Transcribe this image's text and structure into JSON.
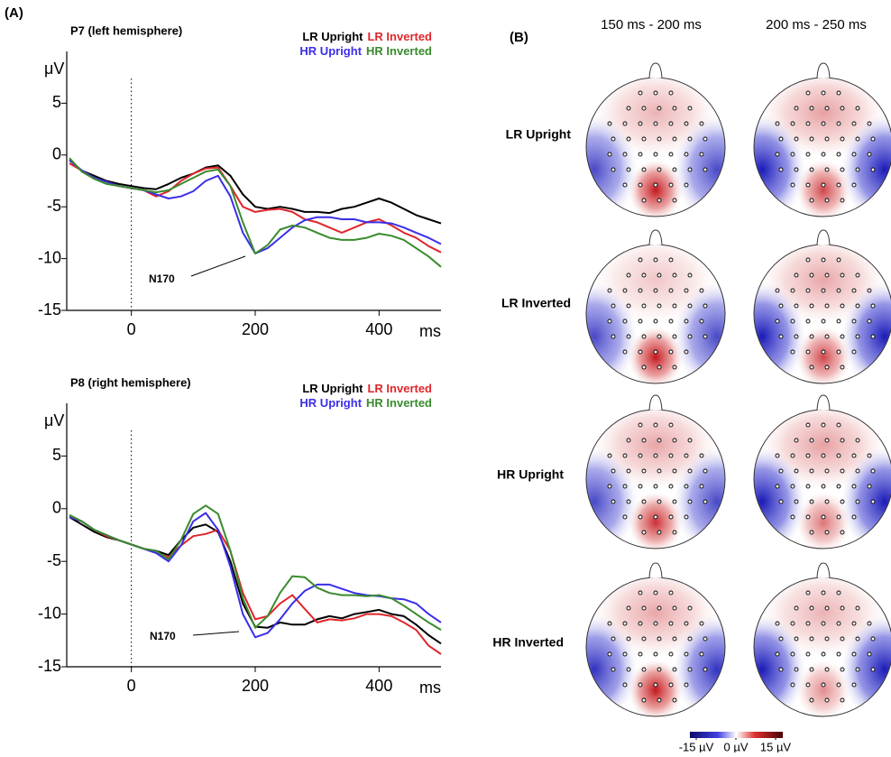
{
  "panel_a_label": "(A)",
  "chart_data": [
    {
      "type": "line",
      "title": "P7 (left hemisphere)",
      "xlabel": "ms",
      "ylabel": "μV",
      "x": [
        -100,
        -80,
        -60,
        -40,
        -20,
        0,
        20,
        40,
        60,
        80,
        100,
        120,
        140,
        160,
        180,
        200,
        220,
        240,
        260,
        280,
        300,
        320,
        340,
        360,
        380,
        400,
        420,
        440,
        460,
        480,
        500
      ],
      "xlim": [
        -100,
        500
      ],
      "xticks": [
        0,
        200,
        400
      ],
      "ylim": [
        -15,
        10
      ],
      "yticks": [
        -15,
        -10,
        -5,
        0,
        5
      ],
      "reference_line_x": 0,
      "legend": "top-right",
      "annotation": "N170",
      "series": [
        {
          "name": "LR Upright",
          "color": "#000000",
          "values": [
            -0.5,
            -1.5,
            -2,
            -2.5,
            -2.8,
            -3,
            -3.2,
            -3.3,
            -2.8,
            -2.2,
            -1.8,
            -1.2,
            -1,
            -2,
            -3.8,
            -5,
            -5.2,
            -5,
            -5.2,
            -5.5,
            -5.5,
            -5.6,
            -5.2,
            -5,
            -4.6,
            -4.2,
            -4.6,
            -5.2,
            -5.8,
            -6.2,
            -6.6
          ]
        },
        {
          "name": "LR Inverted",
          "color": "#e0262b",
          "values": [
            -0.8,
            -1.5,
            -2.2,
            -2.6,
            -3,
            -3.2,
            -3.4,
            -4,
            -3.5,
            -2.5,
            -1.8,
            -1.3,
            -1.2,
            -3,
            -5,
            -5.5,
            -5.3,
            -5.2,
            -5.5,
            -6.2,
            -6.5,
            -7,
            -7.5,
            -7,
            -6.5,
            -6.2,
            -6.8,
            -7.5,
            -8,
            -8.8,
            -9.4
          ]
        },
        {
          "name": "HR Upright",
          "color": "#3b2ee8",
          "values": [
            -0.5,
            -1.5,
            -2.2,
            -2.6,
            -3,
            -3.2,
            -3.4,
            -3.8,
            -4.2,
            -4,
            -3.5,
            -2.5,
            -2,
            -4,
            -7.5,
            -9.5,
            -9,
            -8,
            -7,
            -6.3,
            -6,
            -6,
            -6.2,
            -6.2,
            -6.5,
            -6.5,
            -6.6,
            -7,
            -7.5,
            -8,
            -8.6
          ]
        },
        {
          "name": "HR Inverted",
          "color": "#3a8a2e",
          "values": [
            -0.3,
            -1.6,
            -2.3,
            -2.8,
            -3,
            -3.2,
            -3.4,
            -3.6,
            -3.4,
            -2.8,
            -2.2,
            -1.6,
            -1.4,
            -3,
            -6.5,
            -9.5,
            -8.7,
            -7.2,
            -6.8,
            -7,
            -7.5,
            -8,
            -8.2,
            -8.2,
            -8,
            -7.6,
            -7.8,
            -8.2,
            -9,
            -9.8,
            -10.8
          ]
        }
      ]
    },
    {
      "type": "line",
      "title": "P8 (right hemisphere)",
      "xlabel": "ms",
      "ylabel": "μV",
      "x": [
        -100,
        -80,
        -60,
        -40,
        -20,
        0,
        20,
        40,
        60,
        80,
        100,
        120,
        140,
        160,
        180,
        200,
        220,
        240,
        260,
        280,
        300,
        320,
        340,
        360,
        380,
        400,
        420,
        440,
        460,
        480,
        500
      ],
      "xlim": [
        -100,
        500
      ],
      "xticks": [
        0,
        200,
        400
      ],
      "ylim": [
        -15,
        10
      ],
      "yticks": [
        -15,
        -10,
        -5,
        0,
        5
      ],
      "reference_line_x": 0,
      "legend": "top-right",
      "annotation": "N170",
      "series": [
        {
          "name": "LR Upright",
          "color": "#000000",
          "values": [
            -0.8,
            -1.5,
            -2.2,
            -2.7,
            -3,
            -3.4,
            -3.8,
            -4,
            -4.4,
            -3,
            -1.8,
            -1.5,
            -2.2,
            -5,
            -9,
            -11.2,
            -11.3,
            -10.8,
            -11,
            -11,
            -10.5,
            -10.2,
            -10.4,
            -10,
            -9.8,
            -9.6,
            -10,
            -10.2,
            -11,
            -12,
            -12.8
          ]
        },
        {
          "name": "LR Inverted",
          "color": "#e0262b",
          "values": [
            -0.8,
            -1.2,
            -2,
            -2.6,
            -3,
            -3.4,
            -3.8,
            -4.2,
            -4.6,
            -3.5,
            -2.6,
            -2.4,
            -2,
            -4,
            -8,
            -10.5,
            -10.2,
            -9,
            -8.2,
            -9.5,
            -10.8,
            -10.5,
            -10.6,
            -10.4,
            -10,
            -10,
            -10.2,
            -10.8,
            -11.5,
            -13,
            -13.8
          ]
        },
        {
          "name": "HR Upright",
          "color": "#3b2ee8",
          "values": [
            -0.8,
            -1.2,
            -2,
            -2.5,
            -3,
            -3.4,
            -3.8,
            -4.2,
            -5,
            -3.5,
            -1.2,
            -0.4,
            -2,
            -5.5,
            -10,
            -12.2,
            -11.8,
            -10.5,
            -9,
            -7.8,
            -7.2,
            -7.2,
            -7.6,
            -8,
            -8.2,
            -8.3,
            -8.5,
            -8.6,
            -9,
            -10,
            -10.8
          ]
        },
        {
          "name": "HR Inverted",
          "color": "#3a8a2e",
          "values": [
            -0.6,
            -1.2,
            -2,
            -2.5,
            -3,
            -3.4,
            -3.8,
            -4,
            -4.8,
            -3,
            -0.5,
            0.3,
            -0.5,
            -4,
            -8.5,
            -11.3,
            -10.2,
            -8,
            -6.4,
            -6.5,
            -7.5,
            -8,
            -8.2,
            -8.2,
            -8.3,
            -8.2,
            -8.5,
            -9.2,
            -10,
            -10.8,
            -11.5
          ]
        }
      ]
    }
  ],
  "topomap_panel": {
    "label": "(B)",
    "columns": [
      "150 ms - 200 ms",
      "200 ms - 250 ms"
    ],
    "rows": [
      "LR Upright",
      "LR Inverted",
      "HR Upright",
      "HR Inverted"
    ],
    "colorbar": {
      "lim": [
        -15,
        15
      ],
      "ticks": [
        {
          "value": -15,
          "label": "-15 µV"
        },
        {
          "value": 0,
          "label": "0 µV"
        },
        {
          "value": 15,
          "label": "15 µV"
        }
      ]
    }
  }
}
